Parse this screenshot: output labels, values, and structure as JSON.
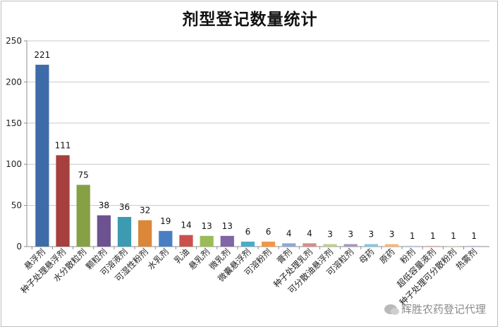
{
  "chart_data": {
    "type": "bar",
    "title": "剂型登记数量统计",
    "xlabel": "",
    "ylabel": "",
    "ylim": [
      0,
      250
    ],
    "yticks": [
      0,
      50,
      100,
      150,
      200,
      250
    ],
    "grid": true,
    "legend": "none",
    "categories": [
      "悬浮剂",
      "种子处理悬浮剂",
      "水分散粒剂",
      "颗粒剂",
      "可溶液剂",
      "可湿性粉剂",
      "水乳剂",
      "乳油",
      "悬乳剂",
      "微乳剂",
      "微囊悬浮剂",
      "可溶粉剂",
      "膏剂",
      "种子处理乳剂",
      "可分散油悬浮剂",
      "可溶粒剂",
      "母药",
      "原药",
      "粉剂",
      "超低容量液剂",
      "种子处理可分散粉剂",
      "热雾剂"
    ],
    "values": [
      221,
      111,
      75,
      38,
      36,
      32,
      19,
      14,
      13,
      13,
      6,
      6,
      4,
      4,
      3,
      3,
      3,
      3,
      1,
      1,
      1,
      1
    ],
    "colors": [
      "#3d6ca8",
      "#a63f3d",
      "#86a045",
      "#6c5290",
      "#3c9ab1",
      "#db8638",
      "#4a7ec3",
      "#cb4f4c",
      "#9bbb59",
      "#8166a5",
      "#4bacc6",
      "#f39645",
      "#8da9d6",
      "#d98b8a",
      "#bdd08e",
      "#a896c0",
      "#84c8db",
      "#f8b77c",
      "#b7c9e5",
      "#e6b4b3",
      "#d6e2bb",
      "#c9bdd8"
    ]
  },
  "watermark": "辉胜农药登记代理"
}
